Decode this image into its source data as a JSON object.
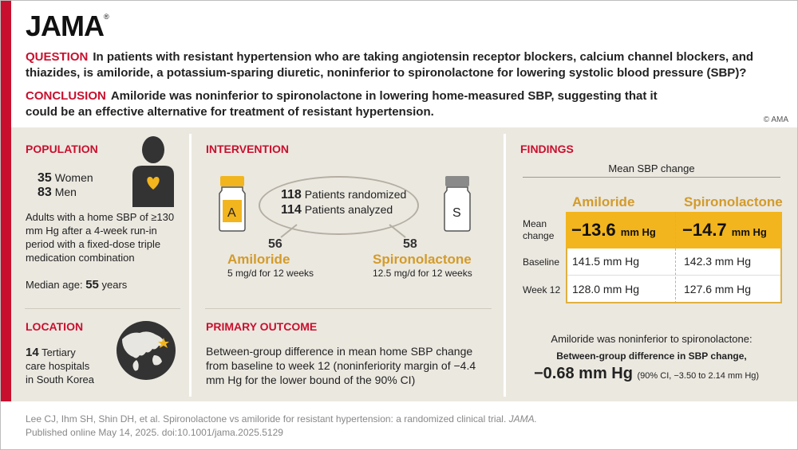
{
  "header": {
    "logo": "JAMA",
    "logo_mark": "®",
    "question_label": "QUESTION",
    "question_text": "In patients with resistant hypertension who are taking angiotensin receptor blockers, calcium channel blockers, and thiazides, is amiloride, a potassium-sparing diuretic, noninferior to spironolactone for lowering systolic blood pressure (SBP)?",
    "conclusion_label": "CONCLUSION",
    "conclusion_text": "Amiloride was noninferior to spironolactone in lowering home-measured SBP, suggesting that it could be an effective alternative for treatment of resistant hypertension.",
    "copyright": "© AMA"
  },
  "population": {
    "title": "POPULATION",
    "women_num": "35",
    "women_label": "Women",
    "men_num": "83",
    "men_label": "Men",
    "description": "Adults with a home SBP of ≥130 mm Hg after a 4-week run-in period with a fixed-dose triple medication combination",
    "median_label": "Median age:",
    "median_value": "55",
    "median_unit": "years"
  },
  "location": {
    "title": "LOCATION",
    "num": "14",
    "line1": "Tertiary",
    "line2": "care hospitals",
    "line3": "in South Korea"
  },
  "intervention": {
    "title": "INTERVENTION",
    "randomized_num": "118",
    "randomized_label": "Patients randomized",
    "analyzed_num": "114",
    "analyzed_label": "Patients analyzed",
    "arm_a": {
      "letter": "A",
      "num": "56",
      "name": "Amiloride",
      "dose": "5 mg/d for 12 weeks"
    },
    "arm_s": {
      "letter": "S",
      "num": "58",
      "name": "Spironolactone",
      "dose": "12.5 mg/d for 12 weeks"
    }
  },
  "primary_outcome": {
    "title": "PRIMARY OUTCOME",
    "text": "Between-group difference in mean home SBP change from baseline to week 12 (noninferiority margin of −4.4 mm Hg for the lower bound of the 90% CI)"
  },
  "findings": {
    "title": "FINDINGS",
    "subtitle": "Mean SBP change",
    "col_amiloride": "Amiloride",
    "col_spironolactone": "Spironolactone",
    "row_mean_label_1": "Mean",
    "row_mean_label_2": "change",
    "row_baseline_label": "Baseline",
    "row_week12_label": "Week 12",
    "amiloride_mean": "−13.6",
    "spironolactone_mean": "−14.7",
    "mean_unit": "mm Hg",
    "amiloride_baseline": "141.5 mm Hg",
    "spironolactone_baseline": "142.3 mm Hg",
    "amiloride_week12": "128.0 mm Hg",
    "spironolactone_week12": "127.6 mm Hg",
    "summary_1": "Amiloride was noninferior to spironolactone:",
    "summary_2": "Between-group difference in SBP change,",
    "summary_value": "−0.68 mm Hg",
    "summary_ci": "(90% CI, −3.50 to 2.14 mm Hg)"
  },
  "citation": {
    "line1": "Lee CJ, Ihm SH, Shin DH, et al. Spironolactone vs amiloride for resistant hypertension: a randomized clinical trial.",
    "journal": "JAMA.",
    "line2": "Published online May 14, 2025. doi:10.1001/jama.2025.5129"
  },
  "colors": {
    "brand_red": "#c8102e",
    "accent_gold": "#d39b2a",
    "highlight_yellow": "#f2b51e",
    "panel_beige": "#ebe8e0"
  }
}
